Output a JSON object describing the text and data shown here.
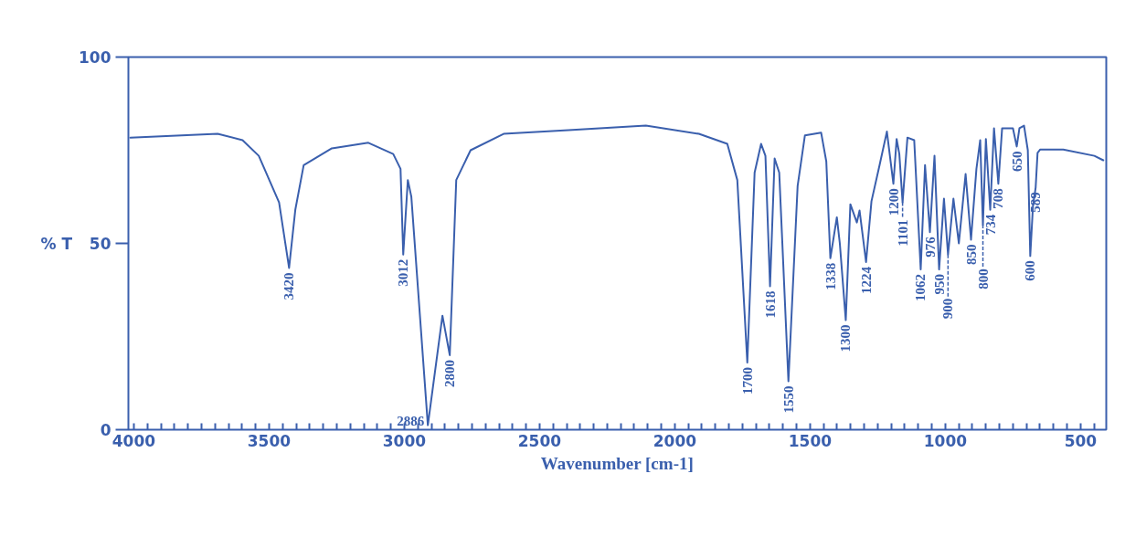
{
  "chart_data": {
    "type": "line",
    "xlabel": "Wavenumber [cm-1]",
    "ylabel": "% T",
    "color": "#3a5fad",
    "x": [
      4013,
      3690,
      3598,
      3538,
      3463,
      3426,
      3403,
      3372,
      3268,
      3133,
      3041,
      3014,
      3004,
      2987,
      2974,
      2913,
      2859,
      2832,
      2808,
      2755,
      2633,
      2393,
      2107,
      1911,
      1806,
      1769,
      1732,
      1705,
      1681,
      1665,
      1648,
      1631,
      1614,
      1580,
      1546,
      1519,
      1459,
      1440,
      1425,
      1401,
      1390,
      1368,
      1351,
      1327,
      1317,
      1293,
      1273,
      1243,
      1216,
      1192,
      1180,
      1170,
      1158,
      1140,
      1115,
      1091,
      1075,
      1057,
      1040,
      1023,
      1005,
      990,
      970,
      950,
      925,
      905,
      885,
      871,
      861,
      850,
      834,
      820,
      804,
      790,
      750,
      736,
      726,
      709,
      695,
      686,
      676,
      666,
      659,
      649,
      564,
      449,
      416
    ],
    "values": [
      78.4,
      79.4,
      77.7,
      73.5,
      61,
      43.4,
      59,
      71,
      75.5,
      77,
      74,
      70,
      47,
      67,
      62.5,
      1.2,
      30.6,
      20,
      67,
      75,
      79.4,
      80.4,
      81.6,
      79.4,
      76.7,
      67,
      18,
      69,
      76.7,
      73.5,
      38.5,
      72.8,
      69,
      13,
      65.4,
      79,
      79.7,
      72,
      46,
      57,
      50,
      29.4,
      60.5,
      55.6,
      58.8,
      45,
      61.3,
      71,
      80,
      66,
      78,
      74,
      61,
      78.4,
      77.7,
      43,
      71,
      53,
      73.5,
      43,
      62,
      47,
      62,
      50,
      68.6,
      51,
      70,
      77.7,
      55,
      78,
      59,
      80.9,
      66,
      80.9,
      80.9,
      76,
      80.9,
      81.6,
      75,
      46.6,
      60,
      65,
      74.3,
      75.2,
      75.2,
      73.5,
      72.3
    ],
    "xlim": [
      4020,
      405
    ],
    "ylim": [
      0,
      100
    ],
    "yticks": [
      0,
      50,
      100
    ],
    "xticks": [
      4000,
      {
        "value": 3950,
        "label": null
      },
      {
        "value": 3900,
        "label": null
      },
      {
        "value": 3850,
        "label": null
      },
      {
        "value": 3800,
        "label": null
      },
      {
        "value": 3750,
        "label": null
      },
      {
        "value": 3700,
        "label": null
      },
      {
        "value": 3650,
        "label": null
      },
      {
        "value": 3600,
        "label": null
      },
      {
        "value": 3550,
        "label": null
      },
      3500,
      {
        "value": 3450,
        "label": null
      },
      {
        "value": 3400,
        "label": null
      },
      {
        "value": 3350,
        "label": null
      },
      {
        "value": 3300,
        "label": null
      },
      {
        "value": 3250,
        "label": null
      },
      {
        "value": 3200,
        "label": null
      },
      {
        "value": 3150,
        "label": null
      },
      {
        "value": 3100,
        "label": null
      },
      {
        "value": 3050,
        "label": null
      },
      3000,
      {
        "value": 2950,
        "label": null
      },
      {
        "value": 2900,
        "label": null
      },
      {
        "value": 2850,
        "label": null
      },
      {
        "value": 2800,
        "label": null
      },
      {
        "value": 2750,
        "label": null
      },
      {
        "value": 2700,
        "label": null
      },
      {
        "value": 2650,
        "label": null
      },
      {
        "value": 2600,
        "label": null
      },
      {
        "value": 2550,
        "label": null
      },
      2500,
      {
        "value": 2450,
        "label": null
      },
      {
        "value": 2400,
        "label": null
      },
      {
        "value": 2350,
        "label": null
      },
      {
        "value": 2300,
        "label": null
      },
      {
        "value": 2250,
        "label": null
      },
      {
        "value": 2200,
        "label": null
      },
      {
        "value": 2150,
        "label": null
      },
      {
        "value": 2100,
        "label": null
      },
      {
        "value": 2050,
        "label": null
      },
      2000,
      {
        "value": 1950,
        "label": null
      },
      {
        "value": 1900,
        "label": null
      },
      {
        "value": 1850,
        "label": null
      },
      {
        "value": 1800,
        "label": null
      },
      {
        "value": 1750,
        "label": null
      },
      {
        "value": 1700,
        "label": null
      },
      {
        "value": 1650,
        "label": null
      },
      {
        "value": 1600,
        "label": null
      },
      {
        "value": 1550,
        "label": null
      },
      1500,
      {
        "value": 1450,
        "label": null
      },
      {
        "value": 1400,
        "label": null
      },
      {
        "value": 1350,
        "label": null
      },
      {
        "value": 1300,
        "label": null
      },
      {
        "value": 1250,
        "label": null
      },
      {
        "value": 1200,
        "label": null
      },
      {
        "value": 1150,
        "label": null
      },
      {
        "value": 1100,
        "label": null
      },
      {
        "value": 1050,
        "label": null
      },
      1000,
      {
        "value": 950,
        "label": null
      },
      {
        "value": 900,
        "label": null
      },
      {
        "value": 850,
        "label": null
      },
      {
        "value": 800,
        "label": null
      },
      {
        "value": 750,
        "label": null
      },
      {
        "value": 700,
        "label": null
      },
      {
        "value": 650,
        "label": null
      },
      {
        "value": 600,
        "label": null
      },
      {
        "value": 550,
        "label": null
      },
      500,
      {
        "value": 450,
        "label": null
      }
    ],
    "annotations": [
      {
        "text": "3420",
        "x": 3426,
        "y": 43.4
      },
      {
        "text": "3012",
        "x": 3004,
        "y": 47
      },
      {
        "text": "2886",
        "x": 2913,
        "y": 1.2
      },
      {
        "text": "2800",
        "x": 2832,
        "y": 20
      },
      {
        "text": "1700",
        "x": 1732,
        "y": 18
      },
      {
        "text": "1618",
        "x": 1648,
        "y": 38.5
      },
      {
        "text": "1550",
        "x": 1580,
        "y": 13
      },
      {
        "text": "1338",
        "x": 1425,
        "y": 46
      },
      {
        "text": "1300",
        "x": 1368,
        "y": 29.4
      },
      {
        "text": "1224",
        "x": 1293,
        "y": 45
      },
      {
        "text": "1200",
        "x": 1192,
        "y": 66
      },
      {
        "text": "1101",
        "x": 1158,
        "y": 61
      },
      {
        "text": "1062",
        "x": 1091,
        "y": 43
      },
      {
        "text": "976",
        "x": 1057,
        "y": 53
      },
      {
        "text": "950",
        "x": 1023,
        "y": 43
      },
      {
        "text": "900",
        "x": 990,
        "y": 47
      },
      {
        "text": "850",
        "x": 905,
        "y": 51
      },
      {
        "text": "800",
        "x": 861,
        "y": 55
      },
      {
        "text": "734",
        "x": 834,
        "y": 59
      },
      {
        "text": "708",
        "x": 804,
        "y": 66
      },
      {
        "text": "650",
        "x": 736,
        "y": 76
      },
      {
        "text": "600",
        "x": 686,
        "y": 46.6
      },
      {
        "text": "589",
        "x": 666,
        "y": 65
      }
    ]
  }
}
